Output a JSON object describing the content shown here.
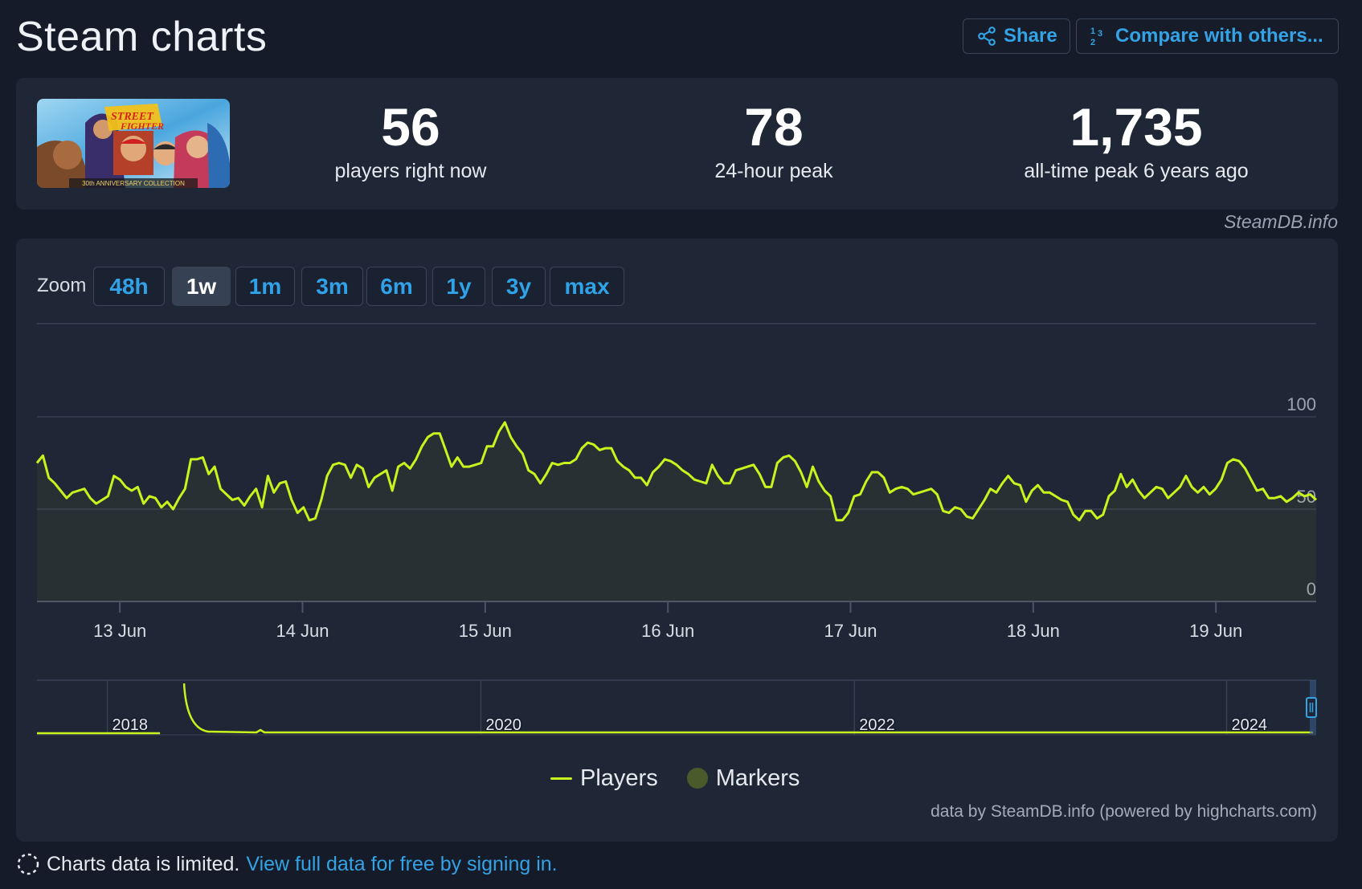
{
  "header": {
    "title": "Steam charts",
    "share_label": "Share",
    "compare_label": "Compare with others..."
  },
  "stats": [
    {
      "value": "56",
      "label": "players right now"
    },
    {
      "value": "78",
      "label": "24-hour peak"
    },
    {
      "value": "1,735",
      "label": "all-time peak 6 years ago"
    }
  ],
  "game_cover": {
    "caption": "30th ANNIVERSARY COLLECTION"
  },
  "credit": "SteamDB.info",
  "zoom": {
    "label": "Zoom",
    "options": [
      "48h",
      "1w",
      "1m",
      "3m",
      "6m",
      "1y",
      "3y",
      "max"
    ],
    "selected": "1w"
  },
  "legend": {
    "players": "Players",
    "markers": "Markers"
  },
  "powered_by": "data by SteamDB.info (powered by highcharts.com)",
  "footer": {
    "notice": "Charts data is limited.",
    "link": "View full data for free by signing in."
  },
  "colors": {
    "accent": "#33a3e6",
    "series": "#c9f31d",
    "card": "#1f2736",
    "background": "#151b28"
  },
  "chart_data": {
    "type": "line",
    "title": "",
    "series": [
      {
        "name": "Players",
        "values": [
          75,
          79,
          67,
          64,
          60,
          56,
          59,
          60,
          61,
          56,
          53,
          55,
          57,
          68,
          66,
          62,
          60,
          62,
          53,
          57,
          56,
          51,
          54,
          50,
          56,
          61,
          77,
          77,
          78,
          69,
          73,
          61,
          58,
          55,
          56,
          52,
          57,
          61,
          51,
          68,
          59,
          64,
          65,
          55,
          48,
          51,
          44,
          45,
          55,
          68,
          74,
          75,
          74,
          67,
          74,
          72,
          62,
          67,
          69,
          71,
          60,
          73,
          75,
          72,
          77,
          84,
          89,
          91,
          91,
          82,
          73,
          78,
          73,
          73,
          74,
          75,
          84,
          84,
          92,
          97,
          89,
          84,
          80,
          71,
          69,
          64,
          69,
          75,
          74,
          75,
          75,
          77,
          83,
          86,
          85,
          82,
          83,
          83,
          76,
          73,
          71,
          67,
          67,
          63,
          70,
          73,
          77,
          76,
          74,
          71,
          69,
          66,
          65,
          64,
          74,
          68,
          64,
          64,
          71,
          72,
          73,
          74,
          69,
          62,
          62,
          75,
          78,
          79,
          76,
          70,
          62,
          73,
          65,
          60,
          57,
          44,
          44,
          48,
          57,
          58,
          65,
          70,
          70,
          67,
          59,
          61,
          62,
          61,
          58,
          59,
          60,
          61,
          58,
          49,
          48,
          51,
          50,
          46,
          45,
          50,
          55,
          61,
          59,
          64,
          68,
          64,
          63,
          54,
          60,
          63,
          59,
          59,
          57,
          55,
          54,
          47,
          44,
          49,
          49,
          45,
          47,
          57,
          60,
          69,
          62,
          66,
          60,
          56,
          59,
          62,
          61,
          56,
          59,
          62,
          68,
          62,
          59,
          62,
          58,
          61,
          66,
          75,
          77,
          76,
          72,
          66,
          60,
          61,
          56,
          56,
          57,
          54,
          56,
          59,
          57,
          58,
          55
        ]
      }
    ],
    "x_tick_labels": [
      "13 Jun",
      "14 Jun",
      "15 Jun",
      "16 Jun",
      "17 Jun",
      "18 Jun",
      "19 Jun"
    ],
    "y_tick_labels": [
      "0",
      "50",
      "100"
    ],
    "ylim": [
      0,
      100
    ],
    "grid": true,
    "navigator": {
      "year_labels": [
        "2018",
        "2020",
        "2022",
        "2024"
      ]
    }
  }
}
